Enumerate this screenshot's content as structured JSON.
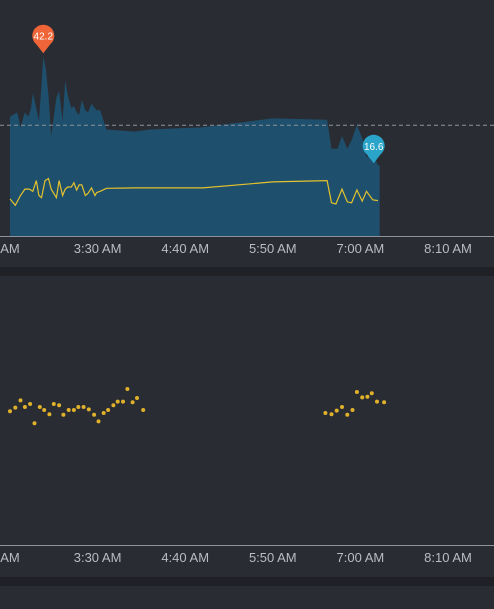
{
  "colors": {
    "background": "#2a2c33",
    "area_fill": "#1e4f6c",
    "line": "#e3c22e",
    "dots": "#e0b12a",
    "max_marker": "#ef6537",
    "last_marker": "#2aa4c8",
    "reference_line": "#8d949f",
    "axis": "#8e939c",
    "divider": "#1f2126"
  },
  "chart_data": [
    {
      "type": "area",
      "title": "",
      "xlabel": "",
      "ylabel": "",
      "ylim": [
        0,
        46
      ],
      "reference_line": 26,
      "x_ticks": [
        "AM",
        "3:30 AM",
        "4:40 AM",
        "5:50 AM",
        "7:00 AM",
        "8:10 AM"
      ],
      "markers": [
        {
          "label": "42.2",
          "kind": "max",
          "color": "max_marker"
        },
        {
          "label": "16.6",
          "kind": "last",
          "color": "last_marker"
        }
      ],
      "series": [
        {
          "kind": "area",
          "x": [
            0,
            0.08,
            0.1,
            0.12,
            0.17,
            0.21,
            0.24,
            0.26,
            0.29,
            0.33,
            0.36,
            0.38,
            0.41,
            0.44,
            0.47,
            0.5,
            0.53,
            0.56,
            0.6,
            0.63,
            0.66,
            0.7,
            0.73,
            0.76,
            0.79,
            0.82,
            0.86,
            0.89,
            0.93,
            0.97,
            0.99,
            1.03,
            1.1,
            1.42,
            1.6,
            2.2,
            3.0,
            3.62,
            3.67,
            3.74,
            3.79,
            3.85,
            3.9,
            3.96,
            4.02,
            4.07,
            4.14,
            4.2,
            4.22
          ],
          "y": [
            28,
            29,
            27.5,
            25.5,
            29,
            28,
            30,
            33.5,
            31,
            27,
            35.5,
            42.2,
            39,
            33,
            23.5,
            28,
            32.5,
            34,
            27,
            36.5,
            33,
            30,
            30.5,
            29,
            28.5,
            32,
            29.5,
            29,
            31,
            30,
            29.5,
            29.5,
            25,
            24.5,
            25,
            25.5,
            27.6,
            27.3,
            20.5,
            20.5,
            23.5,
            20.5,
            22.5,
            26,
            23,
            18.5,
            19.5,
            16.6,
            16.6
          ]
        },
        {
          "kind": "line",
          "x": [
            0,
            0.06,
            0.12,
            0.17,
            0.22,
            0.26,
            0.3,
            0.33,
            0.36,
            0.4,
            0.44,
            0.47,
            0.5,
            0.53,
            0.56,
            0.6,
            0.63,
            0.66,
            0.7,
            0.73,
            0.76,
            0.79,
            0.82,
            0.86,
            0.89,
            0.93,
            0.97,
            0.99,
            1.03,
            1.1,
            1.42,
            2.2,
            3.0,
            3.62,
            3.67,
            3.72,
            3.79,
            3.85,
            3.9,
            3.96,
            4.02,
            4.07,
            4.14,
            4.2
          ],
          "y": [
            8.7,
            7.2,
            9.5,
            11,
            11,
            10.5,
            13,
            9.5,
            9,
            13,
            13.5,
            11,
            10,
            9,
            13,
            9.5,
            11,
            11.5,
            11.5,
            12.5,
            10.8,
            12,
            12,
            9.5,
            10,
            11.3,
            9.5,
            10.2,
            10.5,
            11.2,
            11.3,
            11.3,
            12.7,
            13,
            7.8,
            7.5,
            11,
            8,
            7.8,
            10.8,
            8.2,
            10.5,
            8.5,
            8.3
          ]
        }
      ]
    },
    {
      "type": "scatter",
      "title": "",
      "xlabel": "",
      "ylabel": "",
      "x_ticks": [
        "AM",
        "3:30 AM",
        "4:40 AM",
        "5:50 AM",
        "7:00 AM",
        "8:10 AM"
      ],
      "series": [
        {
          "kind": "dots",
          "x": [
            0,
            0.06,
            0.12,
            0.17,
            0.23,
            0.28,
            0.34,
            0.39,
            0.45,
            0.5,
            0.56,
            0.61,
            0.67,
            0.73,
            0.78,
            0.84,
            0.9,
            0.96,
            1.01,
            1.07,
            1.12,
            1.18,
            1.23,
            1.29,
            1.34,
            1.4,
            1.45,
            1.52,
            3.6,
            3.67,
            3.73,
            3.79,
            3.85,
            3.91,
            3.96,
            4.02,
            4.08,
            4.13,
            4.19,
            4.27
          ],
          "y": [
            5.1,
            5.7,
            6.9,
            5.8,
            6.3,
            3.1,
            5.8,
            5.3,
            4.6,
            6.3,
            6.1,
            4.5,
            5.3,
            5.3,
            5.8,
            5.8,
            5.4,
            4.5,
            3.4,
            4.8,
            5.3,
            6.1,
            6.7,
            6.7,
            8.8,
            6.6,
            7.3,
            5.3,
            4.8,
            4.6,
            5.2,
            5.8,
            4.5,
            5.3,
            8.3,
            7.4,
            7.5,
            8.1,
            6.7,
            6.6
          ]
        }
      ]
    }
  ]
}
